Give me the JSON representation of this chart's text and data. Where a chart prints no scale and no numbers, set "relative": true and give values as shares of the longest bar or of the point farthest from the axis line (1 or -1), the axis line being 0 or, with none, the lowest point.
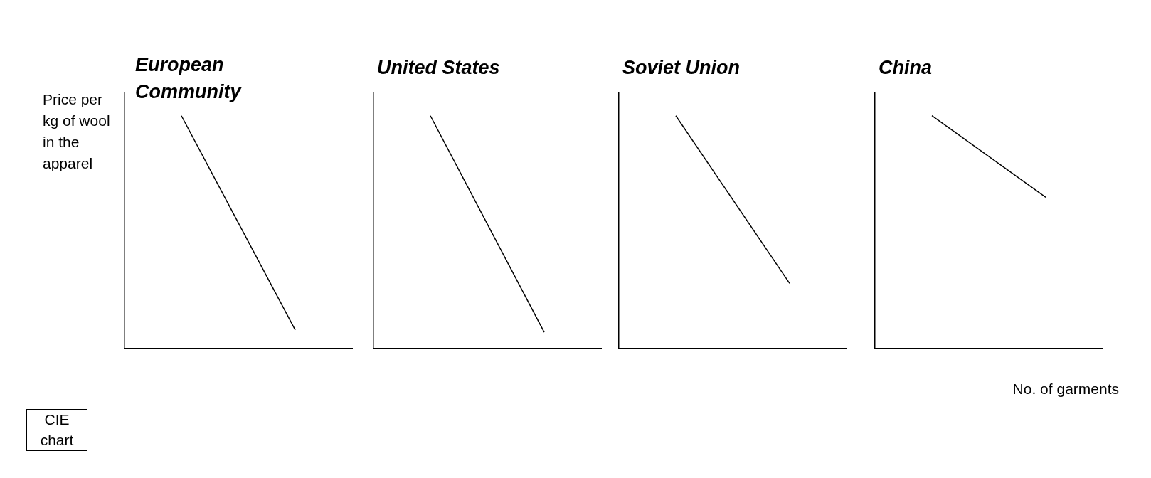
{
  "chart_data": [
    {
      "type": "line",
      "title": "European Community",
      "ylabel": "Price per kg of wool in the apparel",
      "categories": [
        null,
        null
      ],
      "relative": true,
      "tick_labels": false,
      "annotations": [
        "CIE chart"
      ],
      "series": [
        {
          "color": "#000000",
          "values": [
            1,
            0.08
          ]
        }
      ]
    },
    {
      "type": "line",
      "title": "United States",
      "categories": [
        null,
        null
      ],
      "relative": true,
      "tick_labels": false,
      "series": [
        {
          "color": "#000000",
          "values": [
            1,
            0.07
          ]
        }
      ]
    },
    {
      "type": "line",
      "title": "Soviet Union",
      "categories": [
        null,
        null
      ],
      "relative": true,
      "tick_labels": false,
      "series": [
        {
          "color": "#000000",
          "values": [
            1,
            0.28
          ]
        }
      ]
    },
    {
      "type": "line",
      "title": "China",
      "xlabel": "No. of garments",
      "categories": [
        null,
        null
      ],
      "relative": true,
      "tick_labels": false,
      "series": [
        {
          "color": "#000000",
          "values": [
            1,
            0.65
          ]
        }
      ]
    }
  ]
}
